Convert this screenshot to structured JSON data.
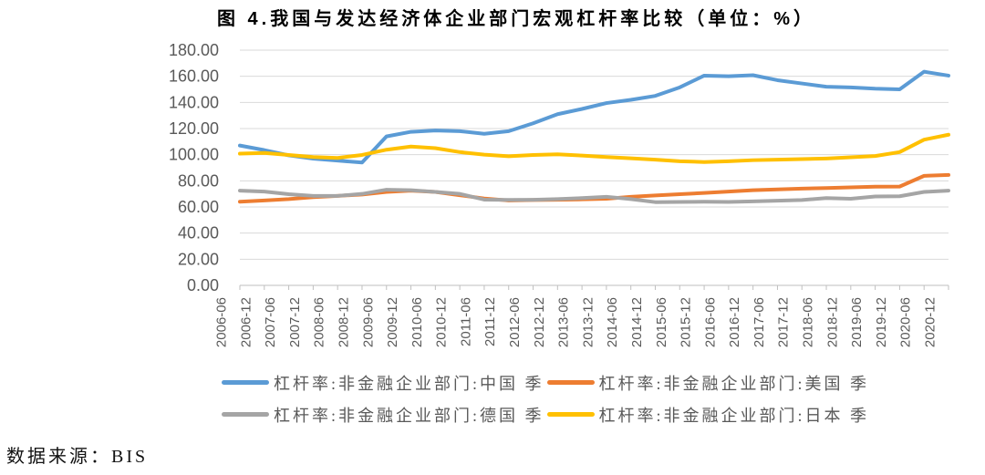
{
  "title": "图 4.我国与发达经济体企业部门宏观杠杆率比较（单位：%）",
  "source_note": "数据来源：BIS",
  "colors": {
    "china": "#5B9BD5",
    "us": "#ED7D31",
    "germany": "#A5A5A5",
    "japan": "#FFC000",
    "gridline": "#D9D9D9",
    "axis_line": "#BFBFBF",
    "axis_text": "#595959",
    "legend_text": "#595959",
    "title_text": "#000000"
  },
  "chart_data": {
    "type": "line",
    "title": "图 4.我国与发达经济体企业部门宏观杠杆率比较（单位：%）",
    "xlabel": "",
    "ylabel": "",
    "ylim": [
      0,
      180
    ],
    "y_tick_step": 20,
    "y_tick_labels": [
      "0.00",
      "20.00",
      "40.00",
      "60.00",
      "80.00",
      "100.00",
      "120.00",
      "140.00",
      "160.00",
      "180.00"
    ],
    "grid": true,
    "legend_position": "bottom",
    "categories": [
      "2006-06",
      "2006-12",
      "2007-06",
      "2007-12",
      "2008-06",
      "2008-12",
      "2009-06",
      "2009-12",
      "2010-06",
      "2010-12",
      "2011-06",
      "2011-12",
      "2012-06",
      "2012-12",
      "2013-06",
      "2013-12",
      "2014-06",
      "2014-12",
      "2015-06",
      "2015-12",
      "2016-06",
      "2016-12",
      "2017-06",
      "2017-12",
      "2018-06",
      "2018-12",
      "2019-06",
      "2019-12",
      "2020-06",
      "2020-12"
    ],
    "series": [
      {
        "name": "杠杆率:非金融企业部门:中国 季",
        "color": "#5B9BD5",
        "values": [
          107.0,
          103.5,
          99.5,
          97.0,
          95.5,
          94.0,
          114.0,
          117.5,
          118.5,
          118.0,
          116.0,
          118.0,
          124.0,
          131.0,
          135.0,
          139.5,
          142.0,
          145.0,
          151.5,
          160.5,
          160.0,
          160.8,
          157.0,
          154.5,
          152.0,
          151.5,
          150.5,
          150.0,
          163.5,
          160.5
        ]
      },
      {
        "name": "杠杆率:非金融企业部门:美国 季",
        "color": "#ED7D31",
        "values": [
          64.0,
          65.0,
          66.0,
          67.5,
          68.5,
          69.5,
          71.5,
          72.5,
          71.5,
          69.0,
          66.5,
          65.0,
          65.3,
          65.5,
          65.8,
          66.3,
          67.8,
          68.8,
          69.8,
          70.7,
          71.8,
          72.8,
          73.4,
          74.0,
          74.5,
          75.0,
          75.5,
          75.6,
          83.8,
          84.5
        ]
      },
      {
        "name": "杠杆率:非金融企业部门:德国 季",
        "color": "#A5A5A5",
        "values": [
          72.5,
          71.8,
          69.8,
          68.5,
          68.5,
          70.0,
          73.2,
          72.8,
          71.5,
          70.0,
          65.6,
          65.4,
          65.5,
          66.0,
          66.8,
          67.8,
          66.0,
          63.7,
          63.8,
          64.0,
          63.8,
          64.3,
          64.8,
          65.3,
          66.8,
          66.3,
          68.0,
          68.2,
          71.5,
          72.5
        ]
      },
      {
        "name": "杠杆率:非金融企业部门:日本 季",
        "color": "#FFC000",
        "values": [
          100.8,
          101.3,
          99.8,
          98.2,
          97.5,
          99.8,
          103.8,
          106.2,
          105.0,
          102.0,
          100.0,
          98.8,
          99.8,
          100.3,
          99.3,
          98.2,
          97.2,
          96.2,
          95.0,
          94.4,
          95.0,
          95.8,
          96.2,
          96.6,
          97.1,
          98.0,
          99.0,
          102.0,
          111.5,
          115.3
        ]
      }
    ]
  }
}
